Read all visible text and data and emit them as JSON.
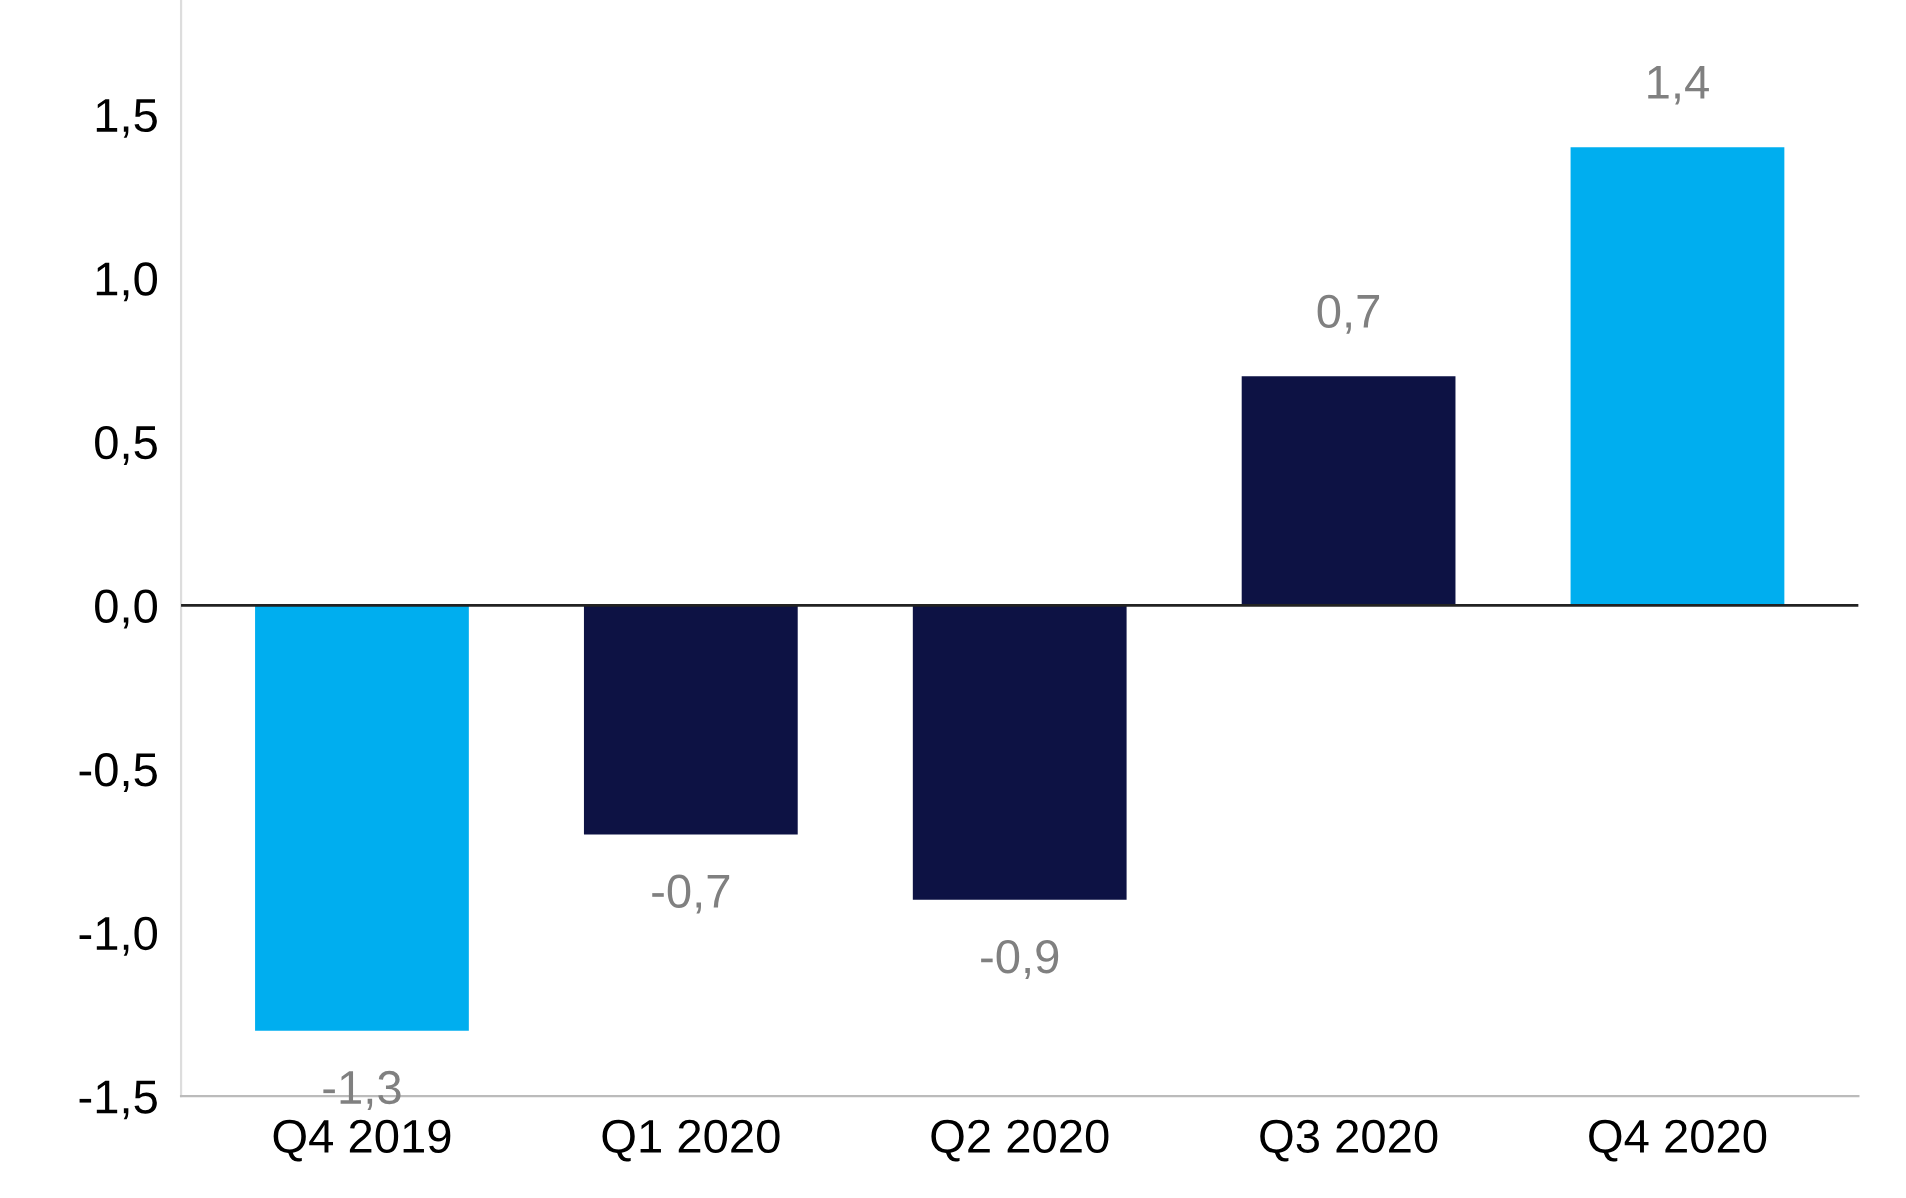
{
  "chart_data": {
    "type": "bar",
    "categories": [
      "Q4 2019",
      "Q1 2020",
      "Q2 2020",
      "Q3 2020",
      "Q4 2020"
    ],
    "values": [
      -1.3,
      -0.7,
      -0.9,
      0.7,
      1.4
    ],
    "colors": [
      "#00aeef",
      "#0d1244",
      "#0d1244",
      "#0d1244",
      "#00aeef"
    ],
    "value_labels": [
      "-1,3",
      "-0,7",
      "-0,9",
      "0,7",
      "1,4"
    ],
    "ylim": [
      -1.5,
      1.85
    ],
    "yticks": [
      {
        "value": -1.5,
        "label": "-1,5"
      },
      {
        "value": -1.0,
        "label": "-1,0"
      },
      {
        "value": -0.5,
        "label": "-0,5"
      },
      {
        "value": 0.0,
        "label": "0,0"
      },
      {
        "value": 0.5,
        "label": "0,5"
      },
      {
        "value": 1.0,
        "label": "1,0"
      },
      {
        "value": 1.5,
        "label": "1,5"
      }
    ],
    "ref_lines": [
      {
        "axis": "y",
        "value": 0,
        "color": "#222222"
      }
    ],
    "grid": false
  }
}
